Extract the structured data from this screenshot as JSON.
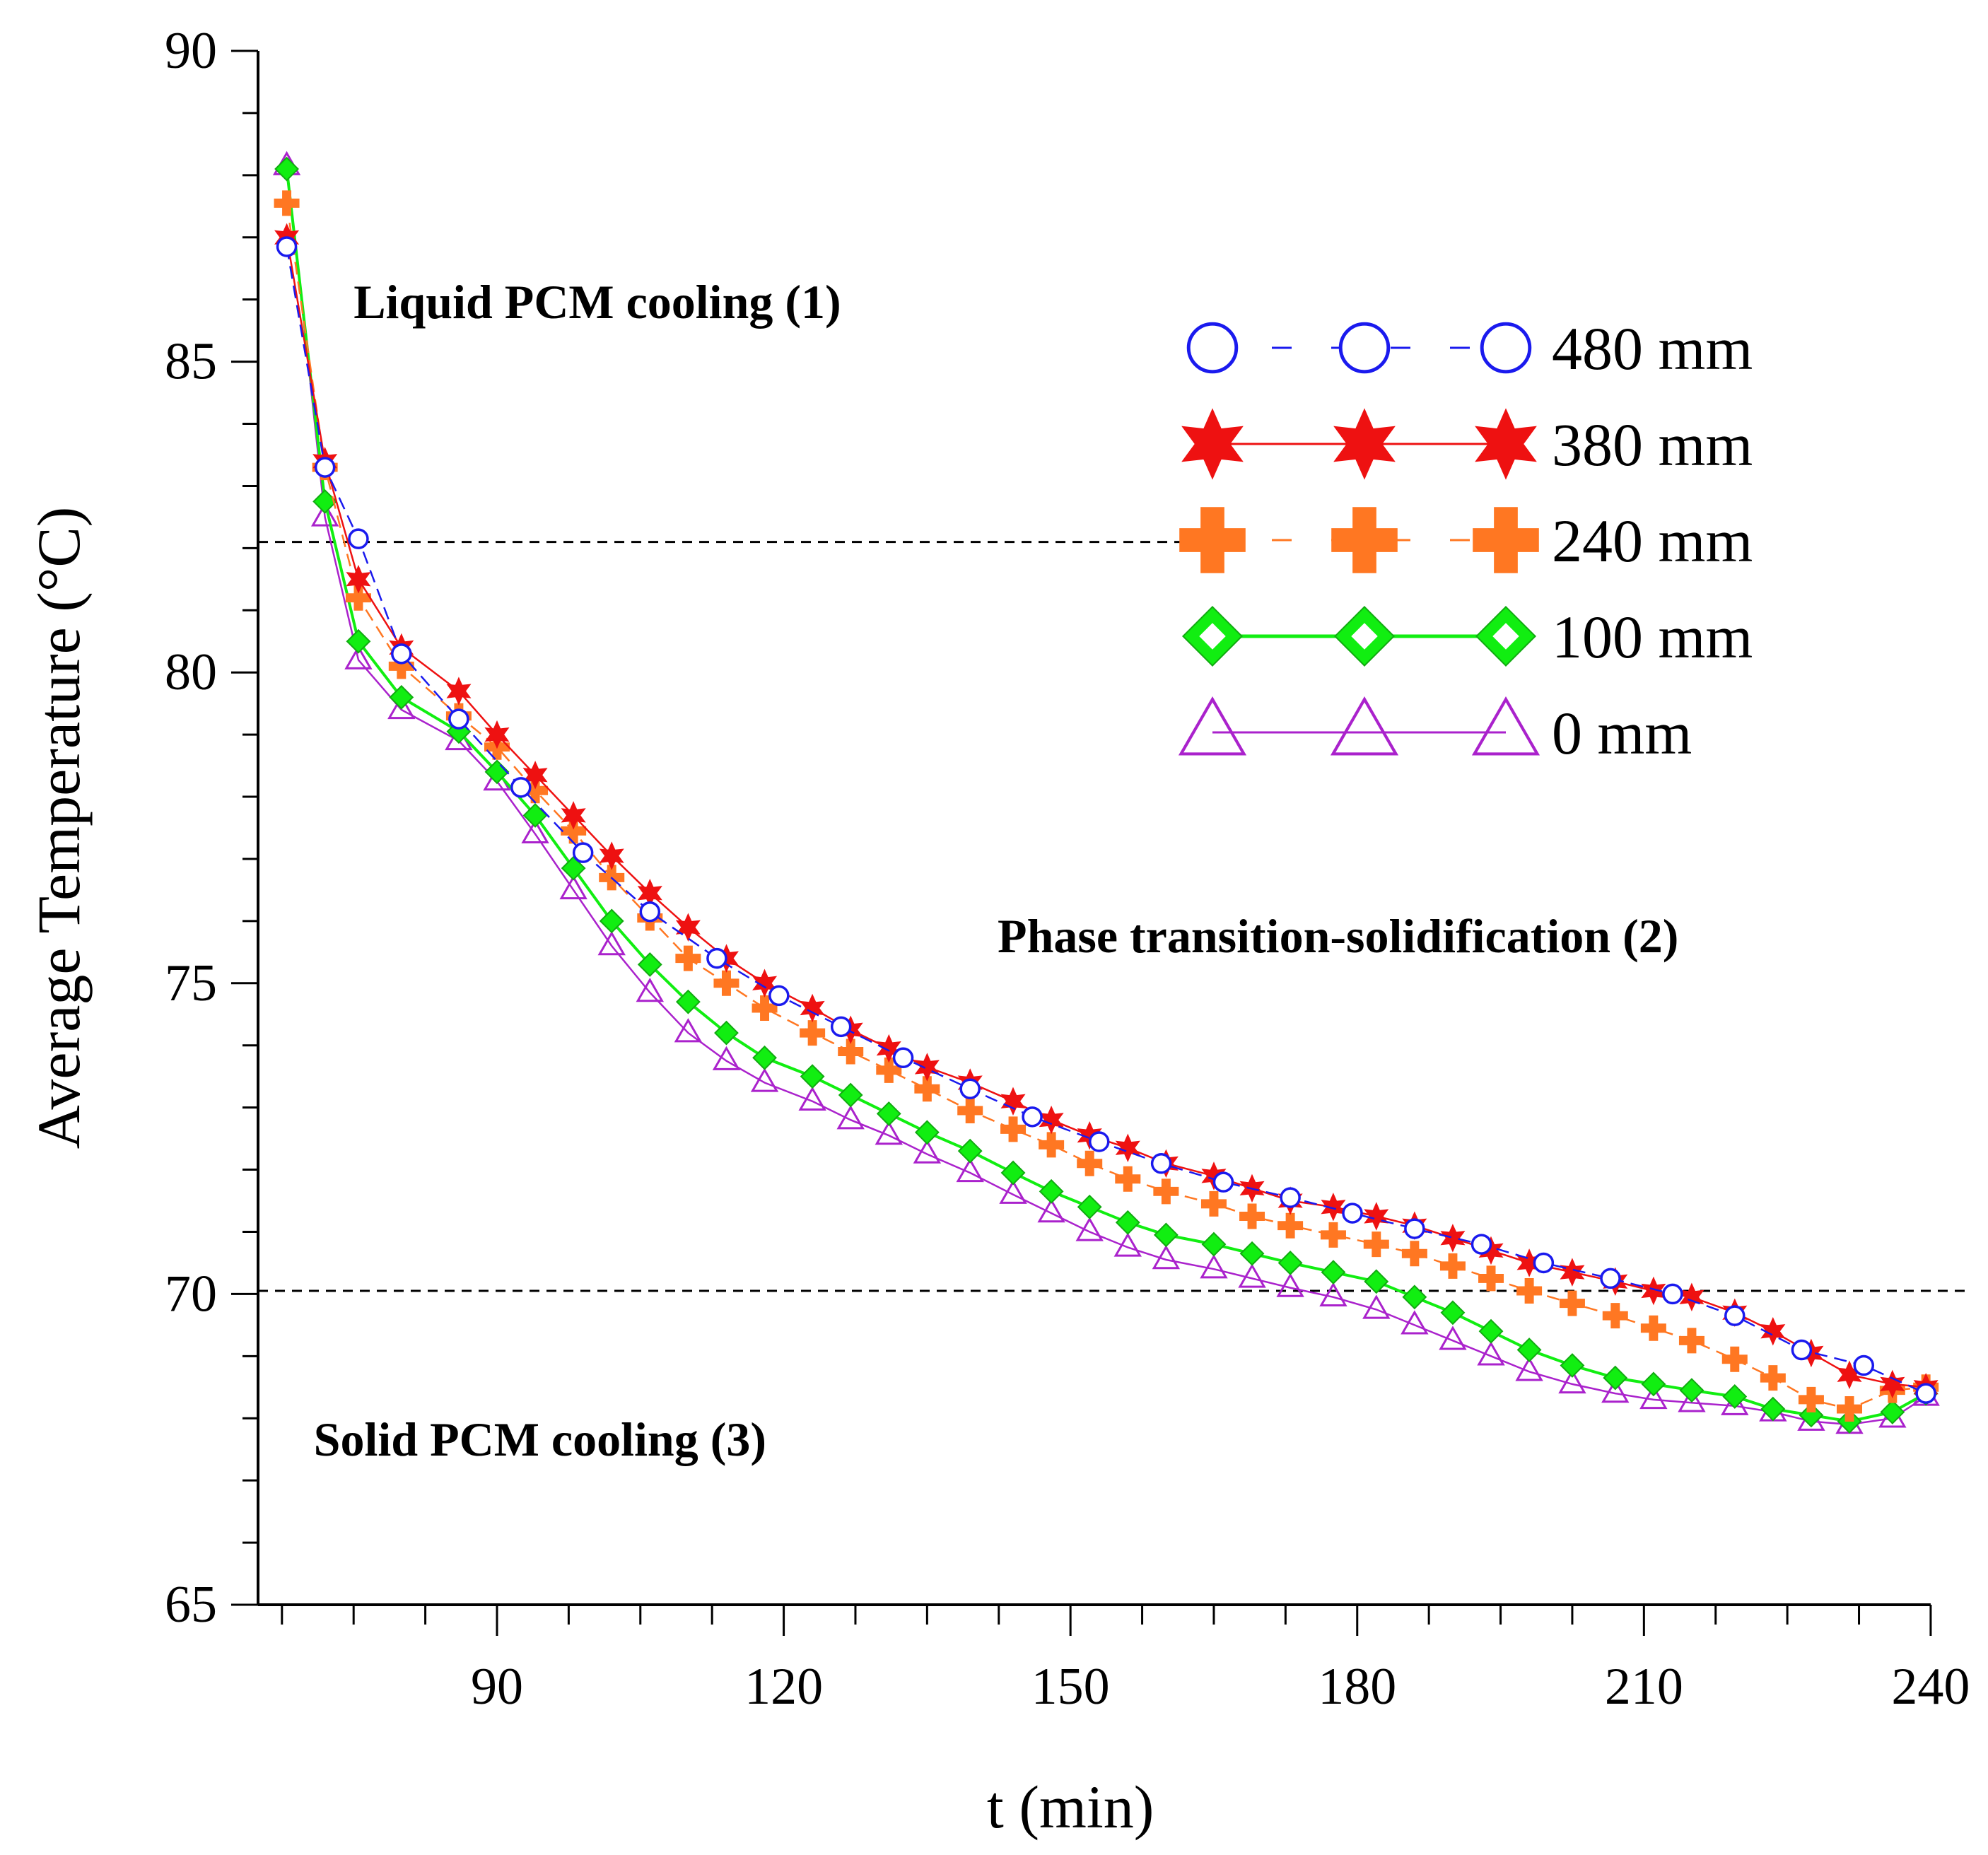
{
  "chart_data": {
    "type": "line",
    "title": "",
    "xlabel": "t (min)",
    "ylabel": "Average Temperature (°C)",
    "xlim": [
      65,
      244
    ],
    "ylim": [
      65,
      90
    ],
    "xticks": [
      90,
      120,
      150,
      180,
      210,
      240
    ],
    "xtick_labels": [
      "90",
      "120",
      "150",
      "180",
      "210",
      "240"
    ],
    "yticks": [
      65,
      70,
      75,
      80,
      85,
      90
    ],
    "ytick_labels": [
      "65",
      "70",
      "75",
      "80",
      "85",
      "90"
    ],
    "grid": false,
    "legend_position": "top-right",
    "reference_lines": [
      {
        "axis": "y",
        "value": 82.1,
        "x_end": 166,
        "style": "dashed"
      },
      {
        "axis": "y",
        "value": 70.05,
        "x_end": 244,
        "style": "dashed"
      }
    ],
    "annotations": [
      {
        "text": "Liquid PCM cooling (1)",
        "x": 100.5,
        "y": 85.7
      },
      {
        "text": "Phase transition-solidification (2)",
        "x": 178,
        "y": 75.5
      },
      {
        "text": "Solid PCM cooling (3)",
        "x": 94.5,
        "y": 67.4
      }
    ],
    "series": [
      {
        "name": "480 mm",
        "label": "480 mm",
        "color": "#1a1aee",
        "marker": "circle",
        "dash": "dashed",
        "x": [
          68,
          72,
          75.5,
          80,
          86,
          92.5,
          99,
          106,
          113,
          119.5,
          126,
          132.5,
          139.5,
          146,
          153,
          159.5,
          166,
          173,
          179.5,
          186,
          193,
          199.5,
          206.5,
          213,
          219.5,
          226.5,
          233,
          239.5
        ],
        "y": [
          86.85,
          83.3,
          82.15,
          80.3,
          79.25,
          78.15,
          77.1,
          76.15,
          75.4,
          74.8,
          74.3,
          73.8,
          73.3,
          72.85,
          72.45,
          72.1,
          71.8,
          71.55,
          71.3,
          71.05,
          70.8,
          70.5,
          70.25,
          70.0,
          69.65,
          69.1,
          68.85,
          68.4
        ]
      },
      {
        "name": "380 mm",
        "label": "380 mm",
        "color": "#ee1111",
        "marker": "star",
        "dash": "solid",
        "x": [
          68,
          72,
          75.5,
          80,
          86,
          90,
          94,
          98,
          102,
          106,
          110,
          114,
          118,
          123,
          127,
          131,
          135,
          139.5,
          144,
          148,
          152,
          156,
          160,
          165,
          169,
          173,
          177.5,
          182,
          186,
          190,
          194,
          198,
          202.5,
          207,
          211,
          215,
          219.5,
          223.5,
          227.5,
          231.5,
          236,
          239.5
        ],
        "y": [
          87.0,
          83.4,
          81.5,
          80.4,
          79.7,
          79.0,
          78.35,
          77.7,
          77.05,
          76.45,
          75.9,
          75.4,
          75.0,
          74.6,
          74.25,
          73.95,
          73.65,
          73.4,
          73.1,
          72.8,
          72.55,
          72.35,
          72.1,
          71.9,
          71.7,
          71.5,
          71.4,
          71.25,
          71.1,
          70.9,
          70.7,
          70.5,
          70.35,
          70.2,
          70.05,
          69.95,
          69.7,
          69.4,
          69.05,
          68.7,
          68.55,
          68.5
        ]
      },
      {
        "name": "240 mm",
        "label": "240 mm",
        "color": "#ff7722",
        "marker": "plus",
        "dash": "dashed",
        "x": [
          68,
          72,
          75.5,
          80,
          86,
          90,
          94,
          98,
          102,
          106,
          110,
          114,
          118,
          123,
          127,
          131,
          135,
          139.5,
          144,
          148,
          152,
          156,
          160,
          165,
          169,
          173,
          177.5,
          182,
          186,
          190,
          194,
          198,
          202.5,
          207,
          211,
          215,
          219.5,
          223.5,
          227.5,
          231.5,
          236,
          239.5
        ],
        "y": [
          87.55,
          83.3,
          81.2,
          80.1,
          79.3,
          78.8,
          78.1,
          77.45,
          76.7,
          76.05,
          75.4,
          75.0,
          74.6,
          74.2,
          73.9,
          73.6,
          73.3,
          72.95,
          72.65,
          72.4,
          72.1,
          71.85,
          71.65,
          71.45,
          71.25,
          71.1,
          70.95,
          70.8,
          70.65,
          70.45,
          70.25,
          70.05,
          69.85,
          69.65,
          69.45,
          69.25,
          68.95,
          68.65,
          68.3,
          68.15,
          68.45,
          68.5
        ]
      },
      {
        "name": "100 mm",
        "label": "100 mm",
        "color": "#11ee11",
        "marker": "diamond",
        "dash": "solid",
        "x": [
          68,
          72,
          75.5,
          80,
          86,
          90,
          94,
          98,
          102,
          106,
          110,
          114,
          118,
          123,
          127,
          131,
          135,
          139.5,
          144,
          148,
          152,
          156,
          160,
          165,
          169,
          173,
          177.5,
          182,
          186,
          190,
          194,
          198,
          202.5,
          207,
          211,
          215,
          219.5,
          223.5,
          227.5,
          231.5,
          236,
          239.5
        ],
        "y": [
          88.1,
          82.75,
          80.5,
          79.6,
          79.05,
          78.4,
          77.7,
          76.85,
          76.0,
          75.3,
          74.7,
          74.2,
          73.8,
          73.5,
          73.2,
          72.9,
          72.6,
          72.3,
          71.95,
          71.65,
          71.4,
          71.15,
          70.95,
          70.8,
          70.65,
          70.5,
          70.35,
          70.2,
          69.95,
          69.7,
          69.4,
          69.1,
          68.85,
          68.65,
          68.55,
          68.45,
          68.35,
          68.15,
          68.05,
          67.95,
          68.1,
          68.4
        ]
      },
      {
        "name": "0 mm",
        "label": "0 mm",
        "color": "#aa22cc",
        "marker": "triangle",
        "dash": "solid",
        "x": [
          68,
          72,
          75.5,
          80,
          86,
          90,
          94,
          98,
          102,
          106,
          110,
          114,
          118,
          123,
          127,
          131,
          135,
          139.5,
          144,
          148,
          152,
          156,
          160,
          165,
          169,
          173,
          177.5,
          182,
          186,
          190,
          194,
          198,
          202.5,
          207,
          211,
          215,
          219.5,
          223.5,
          227.5,
          231.5,
          236,
          239.5
        ],
        "y": [
          88.15,
          82.5,
          80.2,
          79.4,
          78.9,
          78.25,
          77.4,
          76.5,
          75.6,
          74.85,
          74.2,
          73.75,
          73.4,
          73.1,
          72.8,
          72.55,
          72.25,
          71.95,
          71.6,
          71.3,
          71.0,
          70.75,
          70.55,
          70.4,
          70.25,
          70.1,
          69.95,
          69.75,
          69.5,
          69.25,
          69.0,
          68.75,
          68.55,
          68.4,
          68.3,
          68.25,
          68.2,
          68.1,
          67.95,
          67.9,
          68.0,
          68.35
        ]
      }
    ]
  }
}
